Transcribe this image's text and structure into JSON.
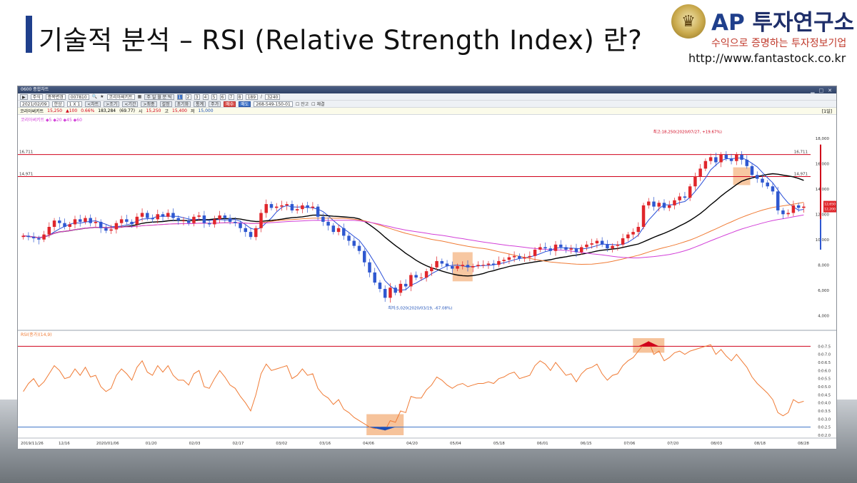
{
  "slide": {
    "title": "기술적 분석 – RSI (Relative Strength Index) 란?",
    "logo": {
      "ap": "AP",
      "name": "투자연구소",
      "slogan": "수익으로 증명하는 투자정보기업",
      "url": "http://www.fantastock.co.kr",
      "emblem_icon": "crown-laurel-icon"
    }
  },
  "hts": {
    "window_title": "0600 종합차트",
    "toolbar1": {
      "type_select": "주식",
      "menu_change": "종목변경",
      "code": "007810",
      "stock_name": "코리아써키트",
      "numbers": [
        "1",
        "2",
        "3",
        "4",
        "5",
        "6",
        "7",
        "8"
      ],
      "active_number": "1",
      "count": "189",
      "total": "3240"
    },
    "toolbar2": {
      "date": "2021/02/09",
      "view": "한상",
      "period": "1 X 1",
      "tabs": [
        "<차트",
        ">조기",
        "<기간",
        ">최종"
      ],
      "settings": "설정",
      "init": "초기화",
      "stat": "통계",
      "period_btn": "주가",
      "buy": "매수",
      "sell": "매도",
      "account": "268-549-150-01",
      "check1": "잔고",
      "check2": "체결"
    },
    "quote": {
      "name": "코리아써키트",
      "price": "15,250",
      "change": "▲100",
      "rate": "0.66%",
      "volume": "183,284",
      "vol_rate": "(69.77)",
      "open_label": "시",
      "open": "15,250",
      "high_label": "고",
      "high": "15,400",
      "low_label": "저",
      "low": "15,000",
      "period": "[1일]"
    },
    "price_legend": "코리아써키트 ◆5 ◆20 ◆45 ◆60",
    "rsi_legend": "RSI(종가)(14,9)"
  },
  "chart_data": {
    "type": "candlestick",
    "title": "",
    "y_ticks_price": [
      "18,000",
      "16,000",
      "14,000",
      "12,000",
      "10,000",
      "8,000",
      "6,000",
      "4,000"
    ],
    "ylim_price": [
      3000,
      19000
    ],
    "x_ticks": [
      "2019/11/26",
      "12/16",
      "2020/01/06",
      "01/20",
      "02/03",
      "02/17",
      "03/02",
      "03/16",
      "04/06",
      "04/20",
      "05/04",
      "05/18",
      "06/01",
      "06/15",
      "07/06",
      "07/20",
      "08/03",
      "08/18",
      "08/28"
    ],
    "hlines_price": [
      {
        "label": "16,711",
        "value": 16711,
        "color": "#d0021b"
      },
      {
        "label": "14,971",
        "value": 14971,
        "color": "#d0021b"
      }
    ],
    "high_annotation": "최고:18,250(2020/07/27, +19.67%)",
    "low_annotation": "최저:5,020(2020/03/19, -67.08%)",
    "current_price_labels": [
      "12,650",
      "12,200"
    ],
    "closes": [
      10300,
      10200,
      10100,
      10000,
      10400,
      11000,
      11500,
      11300,
      11000,
      11200,
      11600,
      11400,
      11700,
      11300,
      11400,
      10900,
      10700,
      10800,
      11300,
      11600,
      11400,
      11200,
      11800,
      12100,
      11700,
      11600,
      12000,
      11800,
      12100,
      11700,
      11500,
      11500,
      11300,
      11800,
      11900,
      11300,
      11200,
      11600,
      11900,
      11700,
      11400,
      11300,
      10900,
      10600,
      10200,
      10900,
      12100,
      12800,
      12500,
      12600,
      12700,
      12800,
      12300,
      12400,
      12700,
      12500,
      12600,
      11800,
      11400,
      11100,
      10600,
      10900,
      10300,
      9900,
      9500,
      9100,
      8200,
      7400,
      6600,
      6100,
      5400,
      6200,
      5800,
      6500,
      6300,
      7200,
      7000,
      7000,
      7500,
      7800,
      8300,
      8100,
      7900,
      7700,
      7900,
      8000,
      7800,
      7900,
      8000,
      8000,
      8100,
      8000,
      8300,
      8400,
      8600,
      8700,
      8500,
      8600,
      8700,
      9200,
      9400,
      9300,
      9100,
      9600,
      9400,
      9200,
      9300,
      9000,
      9400,
      9600,
      9700,
      9900,
      9600,
      9300,
      9500,
      9600,
      10100,
      10400,
      10600,
      11000,
      12700,
      13000,
      12600,
      12900,
      12500,
      12700,
      13100,
      13400,
      13300,
      14200,
      15000,
      15600,
      16200,
      16500,
      16100,
      16700,
      16400,
      16200,
      16700,
      16300,
      15800,
      15100,
      14800,
      14500,
      14200,
      13800,
      12300,
      12000,
      12100,
      12700,
      12500,
      12600
    ],
    "rsi_ylim": [
      0.2,
      0.8
    ],
    "rsi_y_ticks": [
      "0:0:7.5",
      "0:0:7.0",
      "0:0:6.5",
      "0:0:6.0",
      "0:0:5.5",
      "0:0:5.0",
      "0:0:4.5",
      "0:0:4.0",
      "0:0:3.5",
      "0:0:3.0",
      "0:0:2.5",
      "0:0:2.0"
    ],
    "rsi_hlines": [
      0.75,
      0.25
    ],
    "rsi": [
      0.47,
      0.52,
      0.55,
      0.5,
      0.53,
      0.58,
      0.63,
      0.6,
      0.55,
      0.56,
      0.61,
      0.57,
      0.62,
      0.56,
      0.57,
      0.5,
      0.47,
      0.49,
      0.57,
      0.61,
      0.58,
      0.54,
      0.62,
      0.66,
      0.59,
      0.57,
      0.63,
      0.59,
      0.63,
      0.57,
      0.54,
      0.54,
      0.51,
      0.58,
      0.6,
      0.5,
      0.49,
      0.55,
      0.6,
      0.56,
      0.51,
      0.49,
      0.44,
      0.4,
      0.35,
      0.45,
      0.58,
      0.64,
      0.6,
      0.61,
      0.62,
      0.63,
      0.55,
      0.57,
      0.61,
      0.57,
      0.58,
      0.49,
      0.45,
      0.43,
      0.39,
      0.42,
      0.36,
      0.34,
      0.31,
      0.29,
      0.27,
      0.25,
      0.24,
      0.25,
      0.23,
      0.29,
      0.28,
      0.35,
      0.34,
      0.44,
      0.43,
      0.43,
      0.48,
      0.51,
      0.56,
      0.54,
      0.51,
      0.49,
      0.51,
      0.52,
      0.5,
      0.51,
      0.52,
      0.52,
      0.53,
      0.52,
      0.55,
      0.56,
      0.58,
      0.59,
      0.55,
      0.56,
      0.57,
      0.63,
      0.66,
      0.64,
      0.6,
      0.65,
      0.61,
      0.57,
      0.58,
      0.53,
      0.58,
      0.61,
      0.62,
      0.64,
      0.58,
      0.54,
      0.57,
      0.58,
      0.63,
      0.66,
      0.68,
      0.72,
      0.76,
      0.78,
      0.7,
      0.72,
      0.66,
      0.68,
      0.71,
      0.72,
      0.7,
      0.72,
      0.73,
      0.74,
      0.75,
      0.76,
      0.7,
      0.73,
      0.69,
      0.66,
      0.7,
      0.66,
      0.62,
      0.56,
      0.52,
      0.49,
      0.46,
      0.42,
      0.34,
      0.32,
      0.34,
      0.42,
      0.4,
      0.41
    ],
    "ma_lines": [
      {
        "name": "5",
        "color": "#2a4fd8",
        "period": 5
      },
      {
        "name": "20",
        "color": "#000000",
        "period": 20
      },
      {
        "name": "45",
        "color": "#f07b35",
        "period": 45
      },
      {
        "name": "60",
        "color": "#d23fd8",
        "period": 60
      }
    ],
    "highlight_color": "#f5b98a"
  }
}
